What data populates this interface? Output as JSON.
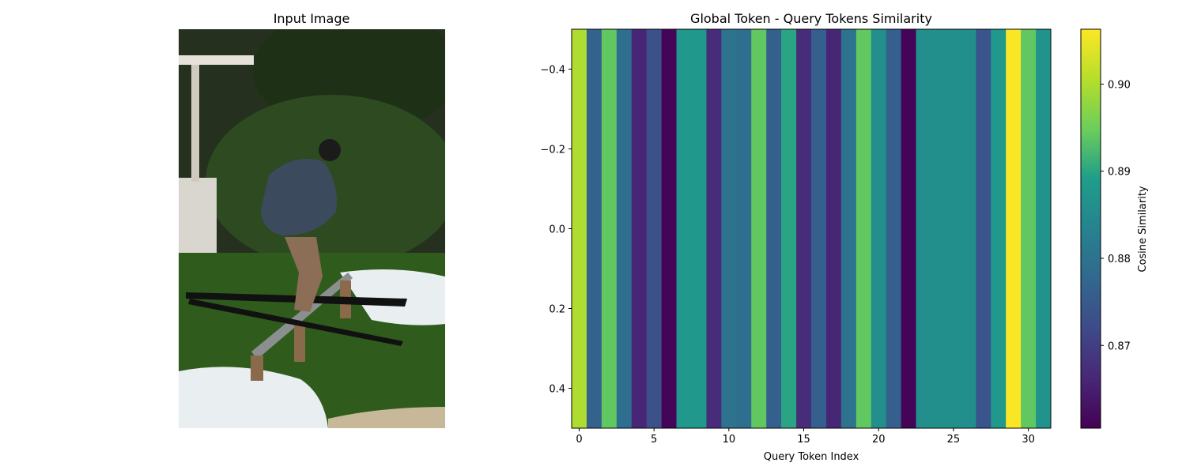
{
  "left_panel": {
    "title": "Input Image",
    "photo_colors": {
      "sky": "#26301f",
      "foliage_dark": "#1e3116",
      "foliage_mid": "#2d4a20",
      "shed": "#d9d6cf",
      "grass": "#2f5c1c",
      "snow": "#e9eef0",
      "rail_wood": "#8a6a4a",
      "rail_metal": "#8c8f8f",
      "jacket": "#3c4a5e",
      "pants": "#8b6e55",
      "ski": "#111111",
      "tarp": "#c8b89a"
    }
  },
  "chart_data": {
    "type": "heatmap",
    "title": "Global Token - Query Tokens Similarity",
    "xlabel": "Query Token Index",
    "ylabel": "",
    "x_ticks": [
      0,
      5,
      10,
      15,
      20,
      25,
      30
    ],
    "y_ticks": [
      "−0.4",
      "−0.2",
      "0.0",
      "0.2",
      "0.4"
    ],
    "y_tick_values": [
      -0.4,
      -0.2,
      0.0,
      0.2,
      0.4
    ],
    "xlim": [
      -0.5,
      31.5
    ],
    "ylim": [
      0.5,
      -0.5
    ],
    "colormap": "viridis",
    "values": [
      0.9,
      0.8765,
      0.894,
      0.879,
      0.866,
      0.873,
      0.861,
      0.888,
      0.888,
      0.867,
      0.88,
      0.879,
      0.894,
      0.876,
      0.89,
      0.867,
      0.876,
      0.866,
      0.88,
      0.894,
      0.886,
      0.876,
      0.861,
      0.886,
      0.886,
      0.886,
      0.886,
      0.874,
      0.888,
      0.906,
      0.894,
      0.887
    ],
    "colorbar": {
      "label": "Cosine Similarity",
      "min": 0.8605,
      "max": 0.9063,
      "ticks": [
        0.87,
        0.88,
        0.89,
        0.9
      ],
      "tick_labels": [
        "0.87",
        "0.88",
        "0.89",
        "0.90"
      ]
    }
  }
}
